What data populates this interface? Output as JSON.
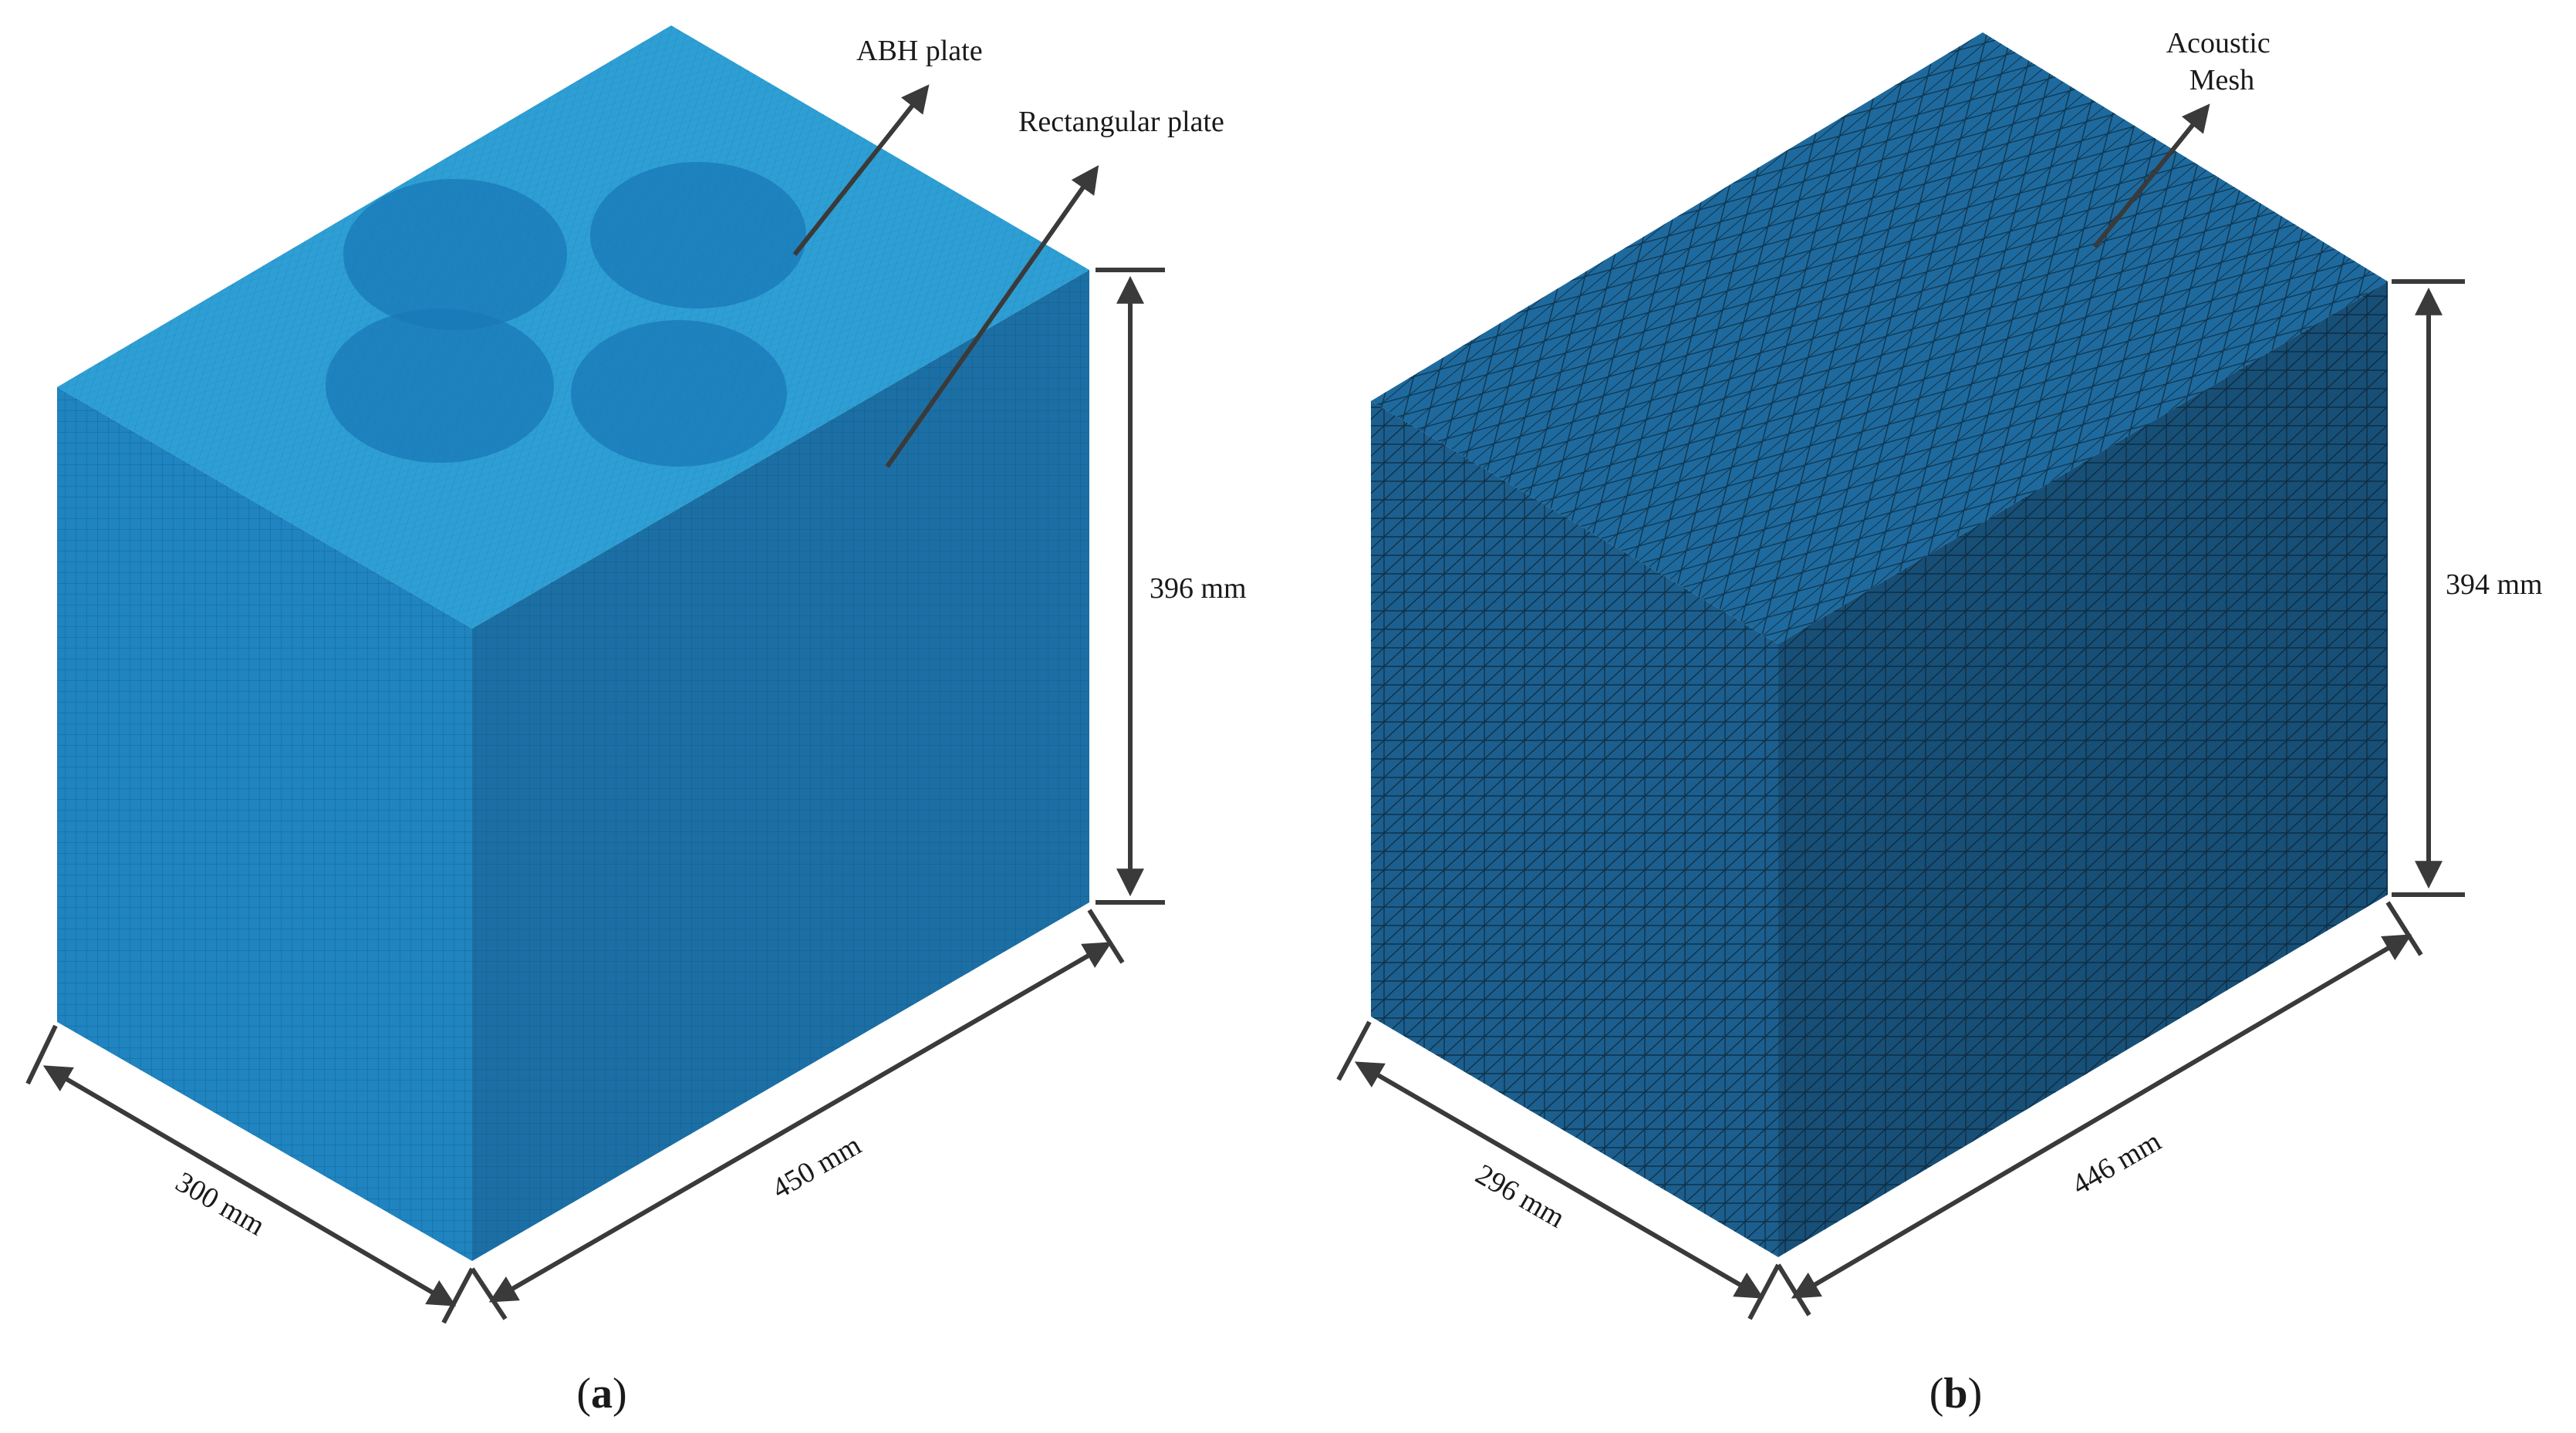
{
  "panel_a": {
    "callout_abh": "ABH plate",
    "callout_rect": "Rectangular plate",
    "dim_width": "300 mm",
    "dim_length": "450 mm",
    "dim_height": "396 mm",
    "caption_open": "(",
    "caption_letter": "a",
    "caption_close": ")"
  },
  "panel_b": {
    "callout_mesh_line1": "Acoustic",
    "callout_mesh_line2": "Mesh",
    "dim_width": "296 mm",
    "dim_length": "446 mm",
    "dim_height": "394 mm",
    "caption_open": "(",
    "caption_letter": "b",
    "caption_close": ")"
  },
  "colors": {
    "a_top": "#2e9fd4",
    "a_left": "#1f84bf",
    "a_right": "#1c6fa4",
    "a_disc": "#1a78b8",
    "a_mesh_line": "#0f4f7a",
    "b_top": "#1e6a9e",
    "b_left": "#1c5f8e",
    "b_right": "#174f77",
    "b_mesh_line": "#0a2233",
    "dimension": "#3a3a3a"
  }
}
